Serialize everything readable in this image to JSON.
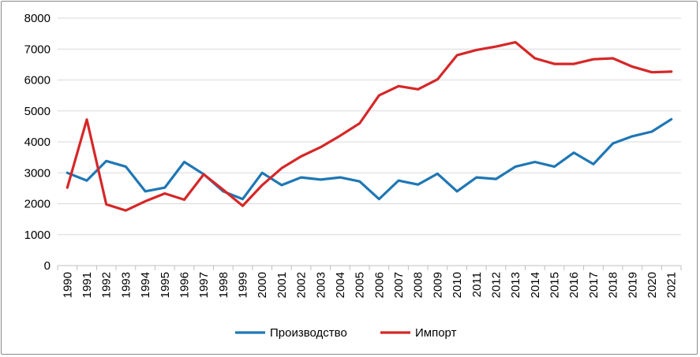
{
  "chart_data": {
    "type": "line",
    "title": "",
    "xlabel": "",
    "ylabel": "",
    "ylim": [
      0,
      8000
    ],
    "yticks": [
      0,
      1000,
      2000,
      3000,
      4000,
      5000,
      6000,
      7000,
      8000
    ],
    "grid": "horizontal",
    "legend_position": "bottom",
    "categories": [
      "1990",
      "1991",
      "1992",
      "1993",
      "1994",
      "1995",
      "1996",
      "1997",
      "1998",
      "1999",
      "2000",
      "2001",
      "2002",
      "2003",
      "2004",
      "2005",
      "2006",
      "2007",
      "2008",
      "2009",
      "2010",
      "2011",
      "2012",
      "2013",
      "2014",
      "2015",
      "2016",
      "2017",
      "2018",
      "2019",
      "2020",
      "2021"
    ],
    "series": [
      {
        "name": "Производство",
        "color": "#1f77b4",
        "values": [
          3000,
          2750,
          3380,
          3200,
          2400,
          2520,
          3350,
          2950,
          2400,
          2150,
          3000,
          2600,
          2850,
          2780,
          2850,
          2720,
          2150,
          2750,
          2620,
          2970,
          2400,
          2850,
          2800,
          3200,
          3350,
          3200,
          3650,
          3280,
          3950,
          4180,
          4330,
          4730
        ]
      },
      {
        "name": "Импорт",
        "color": "#d62728",
        "values": [
          2520,
          4720,
          1980,
          1780,
          2080,
          2330,
          2130,
          2950,
          2450,
          1930,
          2600,
          3150,
          3530,
          3830,
          4200,
          4600,
          5500,
          5800,
          5700,
          6020,
          6800,
          6970,
          7080,
          7220,
          6700,
          6520,
          6520,
          6670,
          6700,
          6430,
          6250,
          6270
        ]
      }
    ]
  }
}
